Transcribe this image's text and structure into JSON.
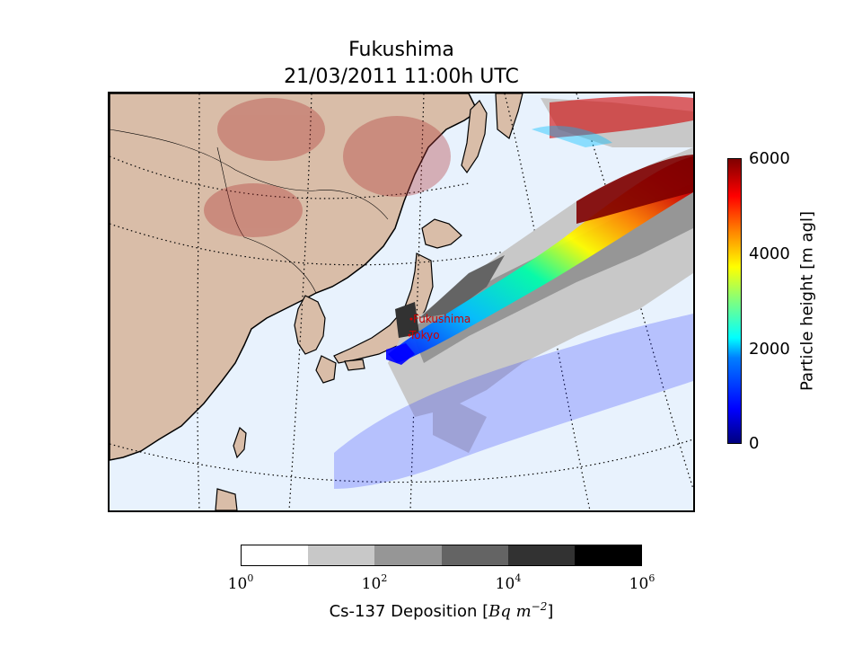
{
  "title": {
    "line1": "Fukushima",
    "line2": "21/03/2011 11:00h UTC"
  },
  "map": {
    "cities": [
      {
        "name": "Fukushima",
        "marker": "point"
      },
      {
        "name": "Tokyo",
        "marker": "point"
      }
    ],
    "colors": {
      "land": "#d9bda8",
      "sea": "#e8f2fd",
      "coast": "#000000",
      "city_label": "#d00000"
    }
  },
  "height_colorbar": {
    "label": "Particle height [m agl]",
    "ticks": [
      "0",
      "2000",
      "4000",
      "6000"
    ],
    "range": [
      0,
      6000
    ],
    "colormap": "jet"
  },
  "deposition_colorbar": {
    "label_prefix": "Cs-137 Deposition [",
    "label_unit_main": "Bq m",
    "label_unit_exp": "−2",
    "label_suffix": "]",
    "ticks": [
      {
        "base": "10",
        "exp": "0"
      },
      {
        "base": "10",
        "exp": "2"
      },
      {
        "base": "10",
        "exp": "4"
      },
      {
        "base": "10",
        "exp": "6"
      }
    ],
    "bins": [
      "#ffffff",
      "#c8c8c8",
      "#969696",
      "#646464",
      "#323232",
      "#000000"
    ],
    "scale": "log"
  }
}
